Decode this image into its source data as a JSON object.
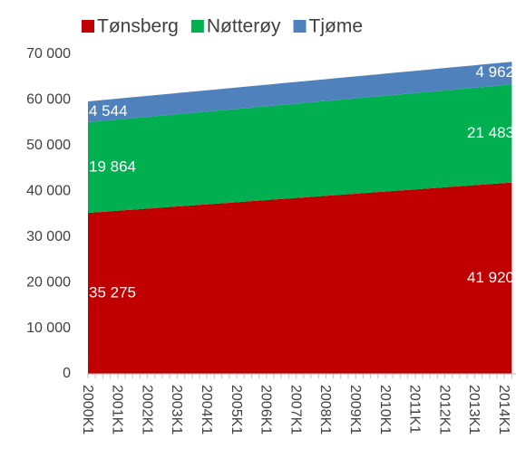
{
  "chart_data": {
    "type": "stacked_area",
    "categories": [
      "2000K1",
      null,
      null,
      null,
      "2001K1",
      null,
      null,
      null,
      "2002K1",
      null,
      null,
      null,
      "2003K1",
      null,
      null,
      null,
      "2004K1",
      null,
      null,
      null,
      "2005K1",
      null,
      null,
      null,
      "2006K1",
      null,
      null,
      null,
      "2007K1",
      null,
      null,
      null,
      "2008K1",
      null,
      null,
      null,
      "2009K1",
      null,
      null,
      null,
      "2010K1",
      null,
      null,
      null,
      "2011K1",
      null,
      null,
      null,
      "2012K1",
      null,
      null,
      null,
      "2013K1",
      null,
      null,
      null,
      "2014K1",
      null
    ],
    "series": [
      {
        "name": "Tønsberg",
        "color": "#c00000",
        "values": [
          35275,
          35392,
          35508,
          35625,
          35741,
          35858,
          35975,
          36091,
          36208,
          36324,
          36441,
          36558,
          36674,
          36791,
          36907,
          37024,
          37141,
          37257,
          37374,
          37490,
          37607,
          37724,
          37840,
          37957,
          38073,
          38190,
          38307,
          38423,
          38540,
          38656,
          38773,
          38890,
          39006,
          39123,
          39239,
          39356,
          39473,
          39589,
          39706,
          39822,
          39939,
          40056,
          40172,
          40289,
          40405,
          40522,
          40639,
          40755,
          40872,
          40988,
          41105,
          41222,
          41338,
          41455,
          41571,
          41688,
          41804,
          41920
        ],
        "value_labels": [
          "35 275",
          null,
          null,
          null,
          null,
          null,
          null,
          null,
          null,
          null,
          null,
          null,
          null,
          null,
          null,
          null,
          null,
          null,
          null,
          null,
          null,
          null,
          null,
          null,
          null,
          null,
          null,
          null,
          null,
          null,
          null,
          null,
          null,
          null,
          null,
          null,
          null,
          null,
          null,
          null,
          null,
          null,
          null,
          null,
          null,
          null,
          null,
          null,
          null,
          null,
          null,
          null,
          null,
          null,
          null,
          null,
          null,
          "41 920"
        ]
      },
      {
        "name": "Nøtterøy",
        "color": "#00b050",
        "values": [
          19864,
          19892,
          19921,
          19949,
          19978,
          20006,
          20034,
          20063,
          20091,
          20120,
          20148,
          20176,
          20205,
          20233,
          20262,
          20290,
          20318,
          20347,
          20375,
          20404,
          20432,
          20460,
          20489,
          20517,
          20546,
          20574,
          20602,
          20631,
          20659,
          20688,
          20716,
          20744,
          20773,
          20801,
          20830,
          20858,
          20886,
          20915,
          20943,
          20972,
          21000,
          21028,
          21057,
          21085,
          21114,
          21142,
          21170,
          21199,
          21227,
          21256,
          21284,
          21312,
          21341,
          21369,
          21398,
          21426,
          21454,
          21483
        ],
        "value_labels": [
          "19 864",
          null,
          null,
          null,
          null,
          null,
          null,
          null,
          null,
          null,
          null,
          null,
          null,
          null,
          null,
          null,
          null,
          null,
          null,
          null,
          null,
          null,
          null,
          null,
          null,
          null,
          null,
          null,
          null,
          null,
          null,
          null,
          null,
          null,
          null,
          null,
          null,
          null,
          null,
          null,
          null,
          null,
          null,
          null,
          null,
          null,
          null,
          null,
          null,
          null,
          null,
          null,
          null,
          null,
          null,
          null,
          null,
          "21 483"
        ]
      },
      {
        "name": "Tjøme",
        "color": "#4f81bd",
        "values": [
          4544,
          4551,
          4559,
          4566,
          4573,
          4581,
          4588,
          4595,
          4603,
          4610,
          4617,
          4625,
          4632,
          4639,
          4647,
          4654,
          4661,
          4669,
          4676,
          4683,
          4691,
          4698,
          4705,
          4713,
          4720,
          4727,
          4735,
          4742,
          4749,
          4757,
          4764,
          4771,
          4779,
          4786,
          4793,
          4801,
          4808,
          4815,
          4823,
          4830,
          4837,
          4845,
          4852,
          4859,
          4867,
          4874,
          4881,
          4889,
          4896,
          4903,
          4911,
          4918,
          4925,
          4933,
          4940,
          4947,
          4955,
          4962
        ],
        "value_labels": [
          "4 544",
          null,
          null,
          null,
          null,
          null,
          null,
          null,
          null,
          null,
          null,
          null,
          null,
          null,
          null,
          null,
          null,
          null,
          null,
          null,
          null,
          null,
          null,
          null,
          null,
          null,
          null,
          null,
          null,
          null,
          null,
          null,
          null,
          null,
          null,
          null,
          null,
          null,
          null,
          null,
          null,
          null,
          null,
          null,
          null,
          null,
          null,
          null,
          null,
          null,
          null,
          null,
          null,
          null,
          null,
          null,
          null,
          "4 962"
        ]
      }
    ],
    "ylim": [
      0,
      70000
    ],
    "yticks": [
      0,
      {
        "value": 10000,
        "label": "10 000"
      },
      {
        "value": 20000,
        "label": "20 000"
      },
      {
        "value": 30000,
        "label": "30 000"
      },
      {
        "value": 40000,
        "label": "40 000"
      },
      {
        "value": 50000,
        "label": "50 000"
      },
      {
        "value": 60000,
        "label": "60 000"
      },
      {
        "value": 70000,
        "label": "70 000"
      }
    ],
    "legend": "top"
  }
}
